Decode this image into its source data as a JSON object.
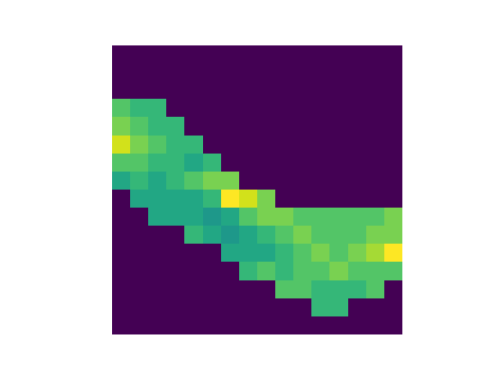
{
  "chart_data": {
    "type": "heatmap",
    "color": "viridis",
    "tick_labels": false,
    "cells": [
      [
        0,
        0,
        0,
        0,
        0,
        0,
        0,
        0,
        0,
        0,
        0,
        0,
        0,
        0,
        0,
        0
      ],
      [
        0,
        0,
        0,
        0,
        0,
        0,
        0,
        0,
        0,
        0,
        0,
        0,
        0,
        0,
        0,
        0
      ],
      [
        0,
        0,
        0,
        0,
        0,
        0,
        0,
        0,
        0,
        0,
        0,
        0,
        0,
        0,
        0,
        0
      ],
      [
        0.55,
        0.5,
        0.5,
        0,
        0,
        0,
        0,
        0,
        0,
        0,
        0,
        0,
        0,
        0,
        0,
        0
      ],
      [
        0.6,
        0.55,
        0.5,
        0.5,
        0,
        0,
        0,
        0,
        0,
        0,
        0,
        0,
        0,
        0,
        0,
        0
      ],
      [
        0.7,
        0.6,
        0.55,
        0.5,
        0.5,
        0,
        0,
        0,
        0,
        0,
        0,
        0,
        0,
        0,
        0,
        0
      ],
      [
        0.55,
        0.55,
        0.5,
        0.5,
        0.45,
        0.5,
        0,
        0,
        0,
        0,
        0,
        0,
        0,
        0,
        0,
        0
      ],
      [
        0.45,
        0.5,
        0.45,
        0.5,
        0.55,
        0.6,
        0.6,
        0,
        0,
        0,
        0,
        0,
        0,
        0,
        0,
        0
      ],
      [
        0,
        0.45,
        0.45,
        0.45,
        0.45,
        0.5,
        0.75,
        0.7,
        0.6,
        0,
        0,
        0,
        0,
        0,
        0,
        0
      ],
      [
        0,
        0,
        0.45,
        0.45,
        0.45,
        0.4,
        0.45,
        0.55,
        0.6,
        0.6,
        0.55,
        0.55,
        0.55,
        0.55,
        0.55,
        0.6
      ],
      [
        0,
        0,
        0,
        0,
        0.5,
        0.45,
        0.4,
        0.45,
        0.5,
        0.55,
        0.6,
        0.55,
        0.55,
        0.55,
        0.6,
        0.6
      ],
      [
        0,
        0,
        0,
        0,
        0,
        0,
        0.45,
        0.45,
        0.45,
        0.5,
        0.55,
        0.6,
        0.55,
        0.6,
        0.65,
        0.75
      ],
      [
        0,
        0,
        0,
        0,
        0,
        0,
        0,
        0.5,
        0.55,
        0.5,
        0.55,
        0.55,
        0.6,
        0.55,
        0.55,
        0.55
      ],
      [
        0,
        0,
        0,
        0,
        0,
        0,
        0,
        0,
        0,
        0.55,
        0.55,
        0.5,
        0.5,
        0.5,
        0.55,
        0
      ],
      [
        0,
        0,
        0,
        0,
        0,
        0,
        0,
        0,
        0,
        0,
        0,
        0.5,
        0.5,
        0,
        0,
        0
      ],
      [
        0,
        0,
        0,
        0,
        0,
        0,
        0,
        0,
        0,
        0,
        0,
        0,
        0,
        0,
        0,
        0
      ]
    ]
  }
}
